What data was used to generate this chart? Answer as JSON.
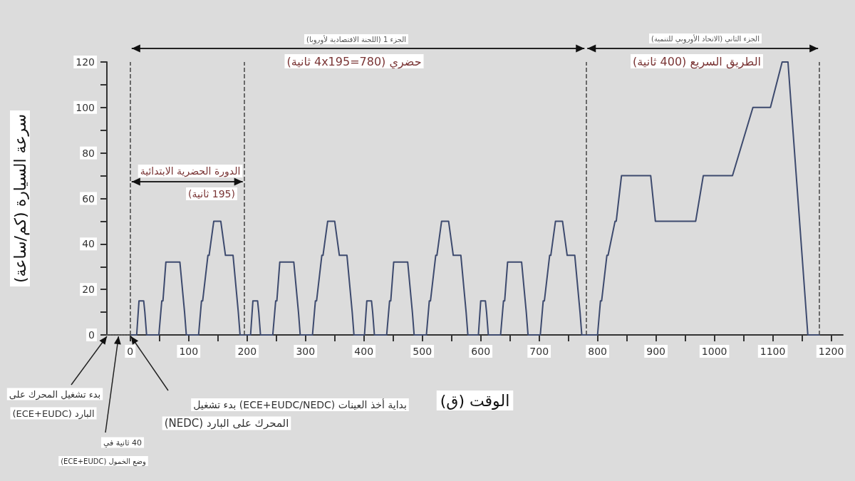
{
  "chart_data": {
    "type": "line",
    "xlabel": "الوقت (ق)",
    "ylabel": "سرعة السيارة (كم/ساعة)",
    "xlim": [
      -40,
      1220
    ],
    "ylim": [
      0,
      120
    ],
    "xticks": [
      0,
      {
        "value": 50,
        "label": null
      },
      100,
      {
        "value": 150,
        "label": null
      },
      200,
      {
        "value": 250,
        "label": null
      },
      300,
      {
        "value": 350,
        "label": null
      },
      400,
      {
        "value": 450,
        "label": null
      },
      500,
      {
        "value": 550,
        "label": null
      },
      600,
      {
        "value": 650,
        "label": null
      },
      700,
      {
        "value": 750,
        "label": null
      },
      800,
      {
        "value": 850,
        "label": null
      },
      900,
      {
        "value": 950,
        "label": null
      },
      1000,
      {
        "value": 1050,
        "label": null
      },
      1100,
      {
        "value": 1150,
        "label": null
      },
      1200
    ],
    "yticks": [
      0,
      {
        "value": 10,
        "label": null
      },
      20,
      {
        "value": 30,
        "label": null
      },
      40,
      {
        "value": 50,
        "label": null
      },
      60,
      {
        "value": 70,
        "label": null
      },
      80,
      {
        "value": 90,
        "label": null
      },
      100,
      {
        "value": 110,
        "label": null
      },
      120
    ],
    "grid": false,
    "marker": "none",
    "series": [
      {
        "color": "#3d4a6e",
        "line_style": "solid",
        "x": [
          0,
          11,
          15,
          23,
          25,
          28,
          49,
          54,
          56,
          61,
          85,
          93,
          96,
          117,
          122,
          124,
          133,
          135,
          143,
          155,
          163,
          176,
          185,
          188,
          195,
          206,
          210,
          218,
          220,
          223,
          244,
          249,
          251,
          256,
          280,
          288,
          291,
          312,
          317,
          319,
          328,
          330,
          338,
          350,
          358,
          371,
          380,
          383,
          390,
          401,
          405,
          413,
          415,
          418,
          439,
          444,
          446,
          451,
          475,
          483,
          486,
          507,
          512,
          514,
          523,
          525,
          533,
          545,
          553,
          566,
          575,
          578,
          585,
          596,
          600,
          608,
          610,
          613,
          634,
          639,
          641,
          646,
          670,
          678,
          681,
          702,
          707,
          709,
          718,
          720,
          728,
          740,
          748,
          761,
          770,
          773,
          780,
          800,
          805,
          807,
          816,
          818,
          830,
          832,
          841,
          891,
          899,
          968,
          981,
          1031,
          1066,
          1096,
          1116,
          1126,
          1160,
          1180
        ],
        "values": [
          0,
          0,
          15,
          15,
          10,
          0,
          0,
          15,
          15,
          32,
          32,
          10,
          0,
          0,
          15,
          15,
          35,
          35,
          50,
          50,
          35,
          35,
          10,
          0,
          0,
          0,
          15,
          15,
          10,
          0,
          0,
          15,
          15,
          32,
          32,
          10,
          0,
          0,
          15,
          15,
          35,
          35,
          50,
          50,
          35,
          35,
          10,
          0,
          0,
          0,
          15,
          15,
          10,
          0,
          0,
          15,
          15,
          32,
          32,
          10,
          0,
          0,
          15,
          15,
          35,
          35,
          50,
          50,
          35,
          35,
          10,
          0,
          0,
          0,
          15,
          15,
          10,
          0,
          0,
          15,
          15,
          32,
          32,
          10,
          0,
          0,
          15,
          15,
          35,
          35,
          50,
          50,
          35,
          35,
          10,
          0,
          0,
          0,
          15,
          15,
          35,
          35,
          50,
          50,
          70,
          70,
          50,
          50,
          70,
          70,
          100,
          100,
          120,
          120,
          0,
          0
        ]
      },
      {
        "color": "#555555",
        "line_style": "dotted",
        "x": [
          -40,
          0
        ],
        "values": [
          0,
          0
        ]
      }
    ],
    "ref_lines": [
      {
        "axis": "x",
        "value": 0,
        "color": "#444444",
        "line_style": "dashed"
      },
      {
        "axis": "x",
        "value": 195,
        "color": "#444444",
        "line_style": "dashed"
      },
      {
        "axis": "x",
        "value": 780,
        "color": "#444444",
        "line_style": "dashed"
      },
      {
        "axis": "x",
        "value": 1180,
        "color": "#444444",
        "line_style": "dashed"
      }
    ],
    "annotations": [
      "الجزء 1 (اللجنة الاقتصادية لأوروبا)",
      "حضري (4x195=780 ثانية)",
      "الجزء الثاني (الاتحاد الأوروبي للتنمية)",
      "الطريق السريع (400 ثانية)",
      "الدورة الحضرية الابتدائية",
      "(195 ثانية)",
      "بدء تشغيل المحرك على",
      "البارد (ECE+EUDC)",
      "40 ثانية في",
      "وضع الخمول (ECE+EUDC)",
      "بداية أخذ العينات (ECE+EUDC/NEDC) بدء تشغيل",
      "المحرك على البارد (NEDC)"
    ]
  }
}
